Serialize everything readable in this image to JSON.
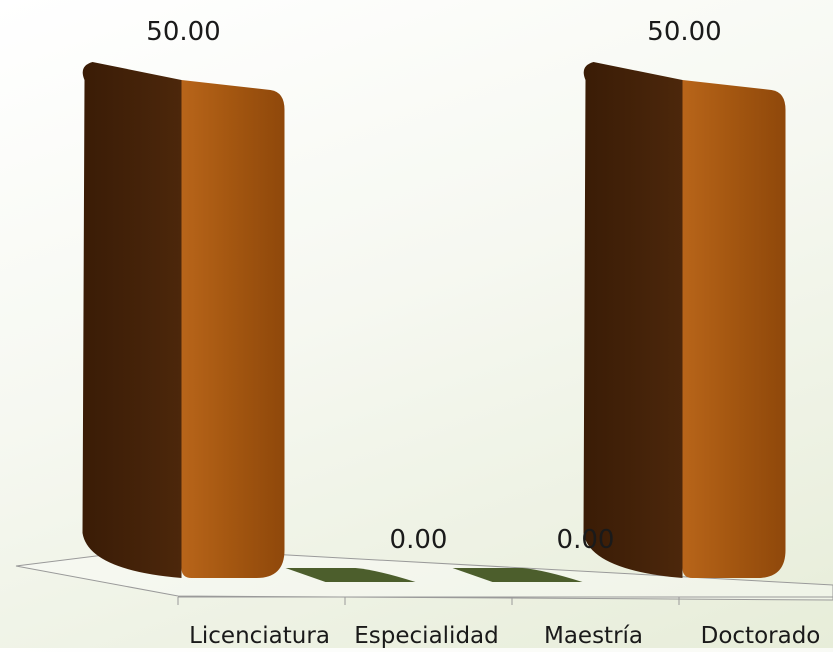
{
  "chart_data": {
    "type": "bar",
    "categories": [
      "Licenciatura",
      "Especialidad",
      "Maestría",
      "Doctorado"
    ],
    "values": [
      50.0,
      0.0,
      0.0,
      50.0
    ],
    "value_labels": [
      "50.00",
      "0.00",
      "0.00",
      "50.00"
    ],
    "title": "",
    "xlabel": "",
    "ylabel": "",
    "ylim": [
      0,
      50
    ],
    "grid": false,
    "legend": "none",
    "style": "3d-column"
  },
  "colors": {
    "bar_front": "#a35610",
    "bar_side": "#45230a",
    "bar_top": "#8a4a12",
    "zero_bar": "#4c5e2c",
    "axis": "#9a9a9a",
    "text": "#1a1a1a"
  }
}
